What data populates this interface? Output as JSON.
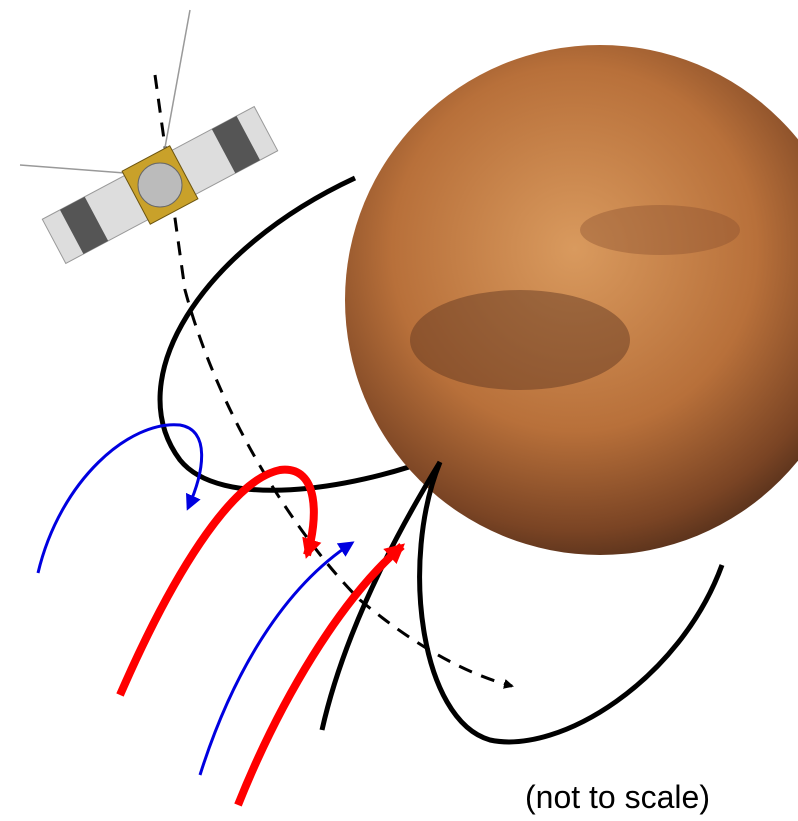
{
  "caption": "(not to scale)"
}
